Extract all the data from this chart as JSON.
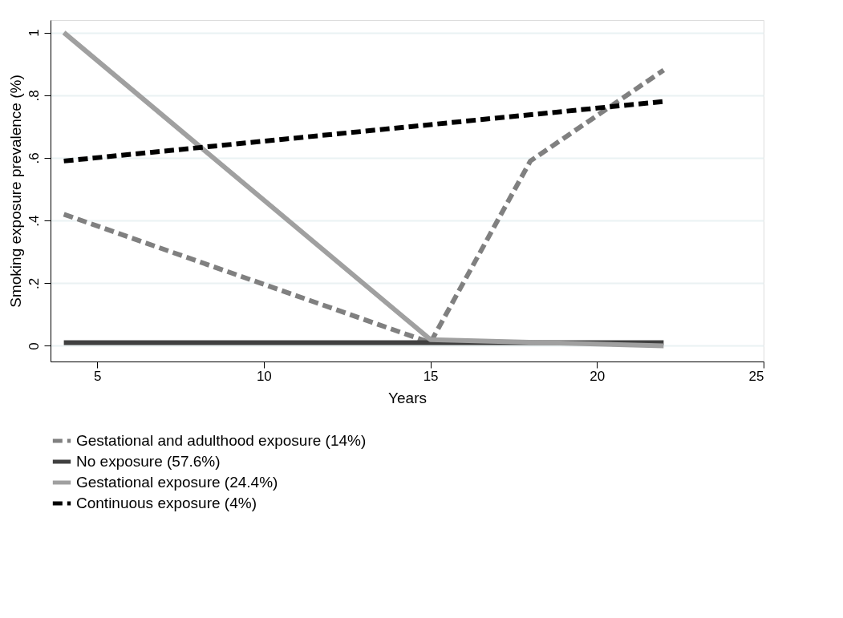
{
  "chart_data": {
    "type": "line",
    "xlabel": "Years",
    "ylabel": "Smoking exposure prevalence (%)",
    "xlim": [
      3.6,
      25
    ],
    "xticks": [
      5,
      10,
      15,
      20,
      25
    ],
    "ylim": [
      -0.05,
      1.04
    ],
    "yticks": [
      {
        "value": 0,
        "label": "0"
      },
      {
        "value": 0.2,
        "label": ".2"
      },
      {
        "value": 0.4,
        "label": ".4"
      },
      {
        "value": 0.6,
        "label": ".6"
      },
      {
        "value": 0.8,
        "label": ".8"
      },
      {
        "value": 1,
        "label": "1"
      }
    ],
    "grid": "y",
    "legend": "bottom",
    "marker": "none",
    "series": [
      {
        "name": "Gestational and adulthood exposure (14%)",
        "color": "#808080",
        "line_style": "dashed",
        "x": [
          4,
          15,
          18,
          22
        ],
        "values": [
          0.42,
          0.01,
          0.59,
          0.88
        ]
      },
      {
        "name": "No exposure (57.6%)",
        "color": "#404040",
        "line_style": "solid",
        "x": [
          4,
          15,
          22
        ],
        "values": [
          0.01,
          0.01,
          0.01
        ]
      },
      {
        "name": "Gestational exposure (24.4%)",
        "color": "#a0a0a0",
        "line_style": "solid",
        "x": [
          4,
          15,
          22
        ],
        "values": [
          1.0,
          0.02,
          0.0
        ]
      },
      {
        "name": "Continuous exposure (4%)",
        "color": "#000000",
        "line_style": "dashed",
        "x": [
          4,
          22
        ],
        "values": [
          0.59,
          0.78
        ]
      }
    ]
  }
}
